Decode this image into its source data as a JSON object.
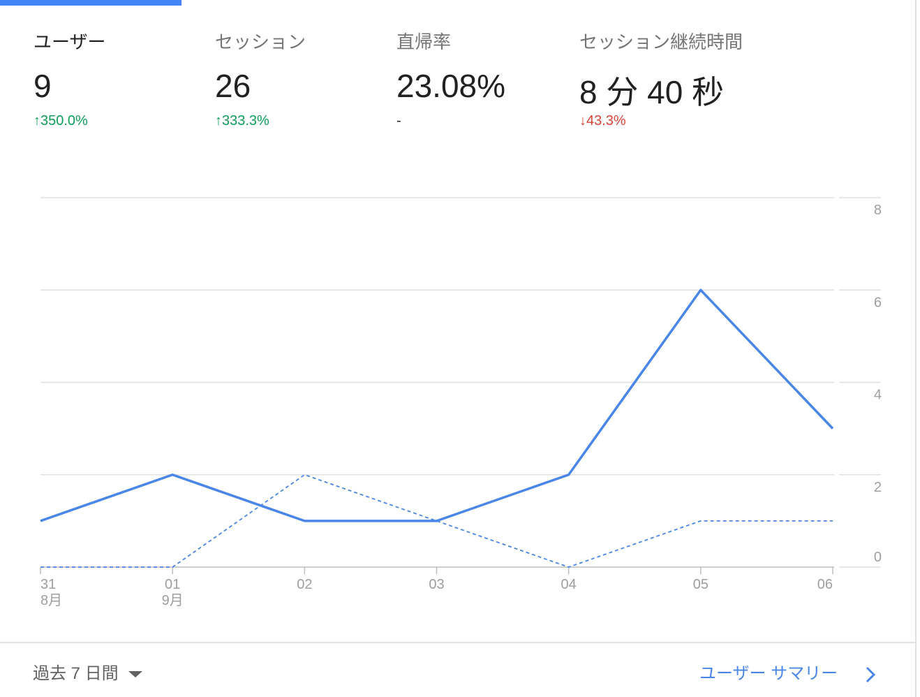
{
  "metrics": [
    {
      "label": "ユーザー",
      "value": "9",
      "change": "↑350.0%",
      "trend": "up"
    },
    {
      "label": "セッション",
      "value": "26",
      "change": "↑333.3%",
      "trend": "up"
    },
    {
      "label": "直帰率",
      "value": "23.08%",
      "change": "-",
      "trend": "none"
    },
    {
      "label": "セッション継続時間",
      "value": "8 分 40 秒",
      "change": "↓43.3%",
      "trend": "down"
    }
  ],
  "chart_data": {
    "type": "line",
    "categories": [
      "31",
      "01",
      "02",
      "03",
      "04",
      "05",
      "06"
    ],
    "month_labels": [
      "8月",
      "9月",
      null,
      null,
      null,
      null,
      null
    ],
    "series": [
      {
        "color": "#4a86e8",
        "dashed": false,
        "values": [
          1,
          2,
          1,
          1,
          2,
          6,
          3
        ]
      },
      {
        "color": "#4a86e8",
        "dashed": true,
        "values": [
          0,
          0,
          2,
          1,
          0,
          1,
          1
        ]
      }
    ],
    "ylim": [
      0,
      8
    ],
    "yticks": [
      0,
      2,
      4,
      6,
      8
    ],
    "grid": true
  },
  "footer": {
    "range": "過去 7 日間",
    "link": "ユーザー サマリー"
  }
}
